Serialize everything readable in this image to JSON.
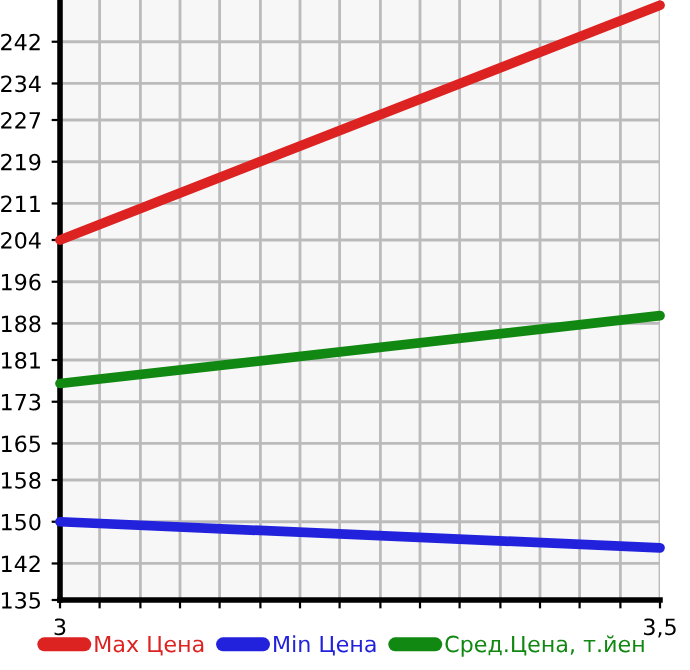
{
  "chart_data": {
    "type": "line",
    "x": [
      3,
      3.5
    ],
    "series": [
      {
        "name": "Max Цена",
        "color": "#dd2222",
        "values": [
          204,
          249
        ]
      },
      {
        "name": "Min Цена",
        "color": "#2222dd",
        "values": [
          150,
          145
        ]
      },
      {
        "name": "Сред.Цена, т.йен",
        "color": "#118811",
        "values": [
          176.5,
          189.5
        ]
      }
    ],
    "xlim": [
      3,
      3.5
    ],
    "xticks": [
      {
        "value": 3,
        "label": "3"
      },
      {
        "value": 3.033,
        "label": null
      },
      {
        "value": 3.067,
        "label": null
      },
      {
        "value": 3.1,
        "label": null
      },
      {
        "value": 3.133,
        "label": null
      },
      {
        "value": 3.167,
        "label": null
      },
      {
        "value": 3.2,
        "label": null
      },
      {
        "value": 3.233,
        "label": null
      },
      {
        "value": 3.267,
        "label": null
      },
      {
        "value": 3.3,
        "label": null
      },
      {
        "value": 3.333,
        "label": null
      },
      {
        "value": 3.367,
        "label": null
      },
      {
        "value": 3.4,
        "label": null
      },
      {
        "value": 3.433,
        "label": null
      },
      {
        "value": 3.467,
        "label": null
      },
      {
        "value": 3.5,
        "label": "3,5"
      }
    ],
    "ylim": [
      135,
      250
    ],
    "yticks": [
      135,
      142,
      150,
      158,
      165,
      173,
      181,
      188,
      196,
      204,
      211,
      219,
      227,
      234,
      242
    ],
    "grid": true,
    "legend": "bottom",
    "marker": "none",
    "line_style": "solid"
  }
}
